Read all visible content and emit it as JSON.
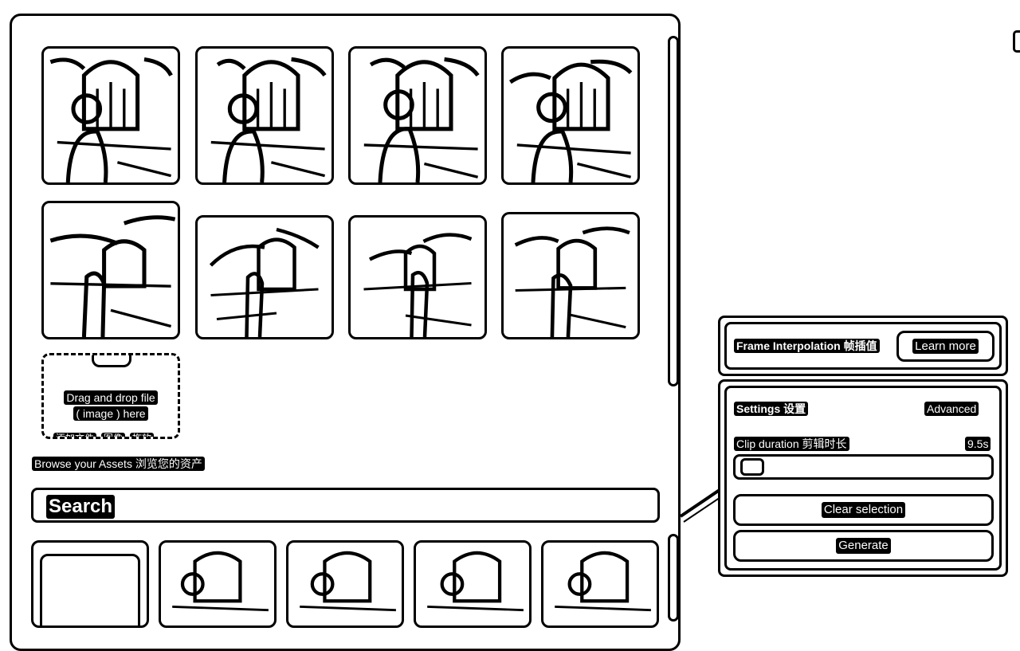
{
  "gallery": {
    "generated_frames_count": 8,
    "dropzone": {
      "line1": "Drag and drop file",
      "line2": "( image ) here",
      "actions": [
        "添加文件",
        "图像",
        "拖放"
      ]
    }
  },
  "assets": {
    "heading": "Browse your Assets 浏览您的资产",
    "search_placeholder": "Search"
  },
  "frame_interpolation": {
    "title": "Frame Interpolation 帧插值",
    "learn_more": "Learn more"
  },
  "settings": {
    "title": "Settings 设置",
    "advanced": "Advanced",
    "clip_duration_label": "Clip duration 剪辑时长",
    "clip_duration_value": "9.5s",
    "clip_duration_slider_level": 0.05,
    "clear_selection": "Clear selection",
    "generate": "Generate"
  },
  "icons": [
    "folder-icon",
    "collapse-icon"
  ],
  "colors": {
    "ink": "#000000",
    "paper": "#ffffff"
  }
}
